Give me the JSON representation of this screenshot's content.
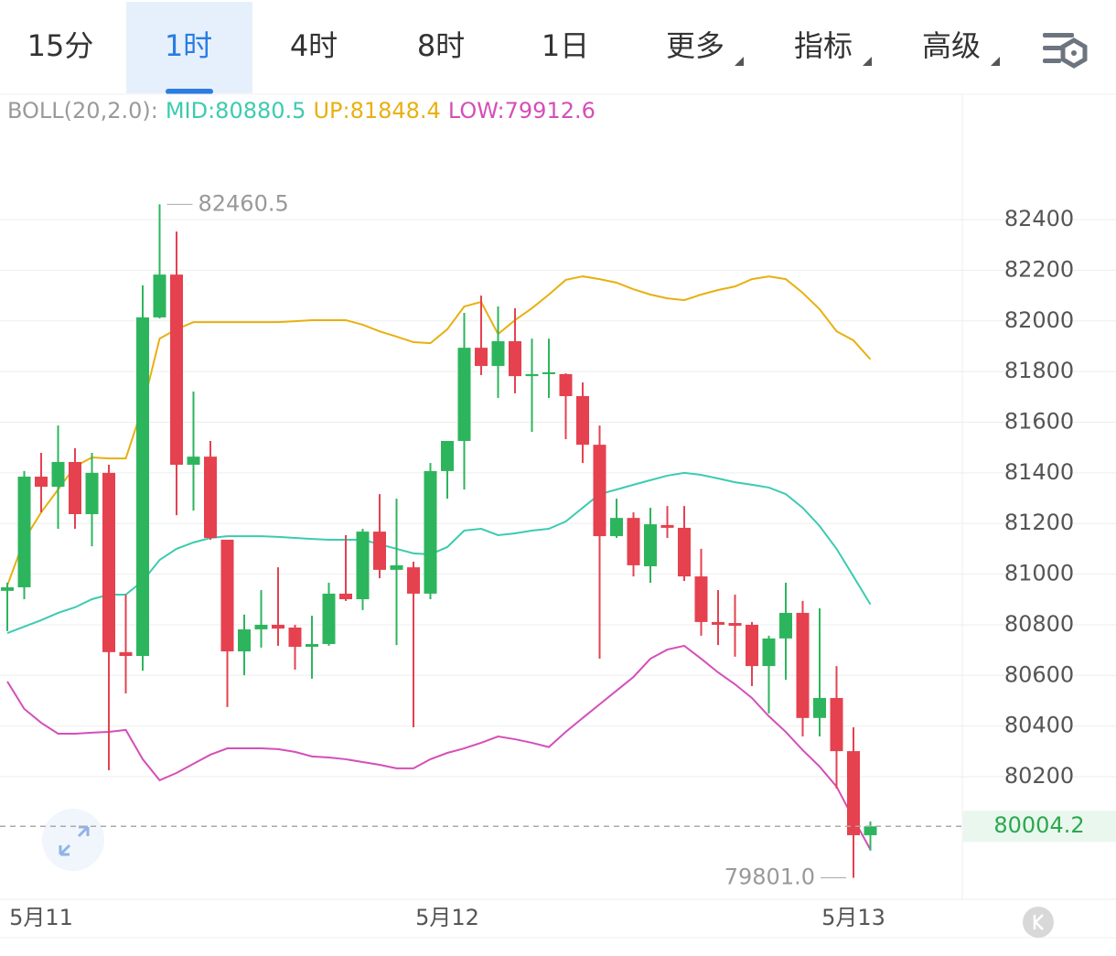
{
  "tabs": [
    "15分",
    "1时",
    "4时",
    "8时",
    "1日",
    "更多",
    "指标",
    "高级"
  ],
  "active_tab_index": 1,
  "chart_data": {
    "type": "candlestick",
    "indicator_legend": [
      "BOLL(20,2.0):",
      "MID:80880.5",
      "UP:81848.4",
      "LOW:79912.6"
    ],
    "categories": [
      null,
      null,
      "5月11",
      null,
      null,
      null,
      null,
      null,
      null,
      null,
      null,
      null,
      null,
      null,
      null,
      null,
      null,
      null,
      null,
      null,
      null,
      null,
      null,
      null,
      null,
      null,
      "5月12",
      null,
      null,
      null,
      null,
      null,
      null,
      null,
      null,
      null,
      null,
      null,
      null,
      null,
      null,
      null,
      null,
      null,
      null,
      null,
      null,
      null,
      null,
      null,
      "5月13",
      null
    ],
    "open": [
      80934,
      80948,
      81385,
      81345,
      81443,
      81237,
      81400,
      80692,
      80677,
      82014,
      82183,
      81432,
      81464,
      81136,
      80695,
      80782,
      80800,
      80789,
      80713,
      80724,
      80923,
      80901,
      81168,
      81017,
      81027,
      80923,
      81407,
      81526,
      81894,
      81822,
      81920,
      81782,
      81790,
      81790,
      81703,
      81511,
      81150,
      81222,
      81031,
      81194,
      81183,
      80991,
      80811,
      80807,
      80800,
      80637,
      80746,
      80847,
      80432,
      80511,
      80301,
      79969
    ],
    "high": [
      80966,
      81407,
      81479,
      81587,
      81497,
      81479,
      81432,
      80919,
      82140,
      82460.5,
      82353,
      81721,
      81526,
      81136,
      80840,
      80937,
      81027,
      80800,
      80836,
      80966,
      81154,
      81179,
      81316,
      81298,
      81049,
      81439,
      81526,
      82032,
      82100,
      82057,
      82050,
      81930,
      81930,
      81793,
      81757,
      81587,
      81298,
      81244,
      81262,
      81269,
      81269,
      81100,
      80937,
      80919,
      80811,
      80757,
      80966,
      80894,
      80865,
      80637,
      80395,
      80023
    ],
    "low": [
      80775,
      80901,
      81244,
      81179,
      81179,
      81110,
      80226,
      80529,
      80619,
      82010,
      81233,
      81251,
      81136,
      80475,
      80601,
      80710,
      80717,
      80623,
      80587,
      80717,
      80894,
      80858,
      80984,
      80720,
      80395,
      80901,
      81298,
      81334,
      81786,
      81696,
      81714,
      81562,
      81696,
      81533,
      81439,
      80666,
      81143,
      80991,
      80966,
      81143,
      80973,
      80757,
      80720,
      80674,
      80558,
      80450,
      80583,
      80359,
      80359,
      80153,
      79801,
      79908
    ],
    "close": [
      80948,
      81385,
      81345,
      81443,
      81237,
      81400,
      80692,
      80677,
      82014,
      82183,
      81432,
      81464,
      81143,
      80695,
      80782,
      80800,
      80785,
      80713,
      80724,
      80923,
      80901,
      81168,
      81017,
      81035,
      80923,
      81407,
      81526,
      81894,
      81822,
      81920,
      81782,
      81790,
      81797,
      81703,
      81511,
      81150,
      81222,
      81035,
      81197,
      81183,
      80991,
      80811,
      80800,
      80796,
      80637,
      80746,
      80847,
      80432,
      80511,
      80301,
      79969,
      80004.2
    ],
    "up_color": "#2db55d",
    "down_color": "#e5414f",
    "overlays": [
      {
        "name": "MID",
        "color": "#3ccbb0",
        "values": [
          80767,
          80793,
          80818,
          80847,
          80869,
          80901,
          80919,
          80919,
          80973,
          81056,
          81100,
          81125,
          81143,
          81150,
          81150,
          81150,
          81147,
          81143,
          81139,
          81136,
          81136,
          81136,
          81118,
          81100,
          81082,
          81078,
          81107,
          81172,
          81179,
          81154,
          81161,
          81172,
          81179,
          81208,
          81262,
          81316,
          81334,
          81353,
          81371,
          81389,
          81400,
          81392,
          81378,
          81363,
          81353,
          81342,
          81316,
          81262,
          81190,
          81100,
          80991,
          80880.5
        ]
      },
      {
        "name": "UP",
        "color": "#e8b010",
        "values": [
          80955,
          81136,
          81244,
          81334,
          81425,
          81461,
          81457,
          81457,
          81660,
          81930,
          81967,
          81995,
          81995,
          81995,
          81995,
          81995,
          81995,
          81999,
          82003,
          82003,
          82003,
          81985,
          81959,
          81938,
          81916,
          81912,
          81967,
          82057,
          82075,
          81948,
          82003,
          82050,
          82104,
          82162,
          82176,
          82165,
          82151,
          82125,
          82104,
          82089,
          82082,
          82104,
          82122,
          82136,
          82165,
          82176,
          82165,
          82111,
          82046,
          81959,
          81923,
          81848.4
        ]
      },
      {
        "name": "LOW",
        "color": "#d44fb8",
        "values": [
          80576,
          80468,
          80413,
          80370,
          80370,
          80374,
          80377,
          80385,
          80269,
          80186,
          80215,
          80251,
          80287,
          80312,
          80312,
          80312,
          80309,
          80298,
          80280,
          80276,
          80269,
          80258,
          80247,
          80233,
          80233,
          80269,
          80294,
          80312,
          80334,
          80359,
          80348,
          80334,
          80317,
          80377,
          80432,
          80486,
          80540,
          80594,
          80666,
          80702,
          80717,
          80666,
          80612,
          80565,
          80511,
          80439,
          80377,
          80305,
          80240,
          80161,
          80034,
          79912.6
        ]
      }
    ],
    "ylim": [
      79716,
      82888
    ],
    "yticks": [
      80200,
      80400,
      80600,
      80800,
      81000,
      81200,
      81400,
      81600,
      81800,
      82000,
      82200,
      82400
    ],
    "grid": true,
    "current_price": {
      "value": 80004.2
    },
    "annotations": [
      {
        "value": 82460.5
      },
      {
        "value": 79801,
        "label": "79801.0"
      }
    ]
  }
}
